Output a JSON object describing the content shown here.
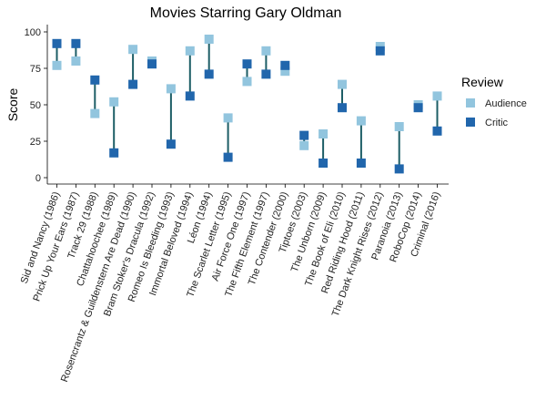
{
  "chart_data": {
    "type": "scatter",
    "title": "Movies Starring Gary Oldman",
    "xlabel": "",
    "ylabel": "Score",
    "ylim": [
      0,
      100
    ],
    "yticks": [
      0,
      25,
      50,
      75,
      100
    ],
    "grid": false,
    "legend": {
      "title": "Review",
      "placement": "right",
      "entries": [
        "Audience",
        "Critic"
      ]
    },
    "categories": [
      "Sid and Nancy (1986)",
      "Prick Up Your Ears (1987)",
      "Track 29 (1988)",
      "Chattahoochee (1989)",
      "Rosencrantz & Guildenstern Are Dead (1990)",
      "Bram Stoker's Dracula (1992)",
      "Romeo Is Bleeding (1993)",
      "Immortal Beloved (1994)",
      "Léon (1994)",
      "The Scarlet Letter (1995)",
      "Air Force One (1997)",
      "The Fifth Element (1997)",
      "The Contender (2000)",
      "Tiptoes (2003)",
      "The Unborn (2009)",
      "The Book of Eli (2010)",
      "Red Riding Hood (2011)",
      "The Dark Knight Rises (2012)",
      "Paranoia (2013)",
      "RoboCop (2014)",
      "Criminal (2016)"
    ],
    "series": [
      {
        "name": "Audience",
        "values": [
          77,
          80,
          44,
          52,
          88,
          80,
          61,
          87,
          95,
          41,
          66,
          87,
          73,
          22,
          30,
          64,
          39,
          90,
          35,
          50,
          56
        ]
      },
      {
        "name": "Critic",
        "values": [
          92,
          92,
          67,
          17,
          64,
          78,
          23,
          56,
          71,
          14,
          78,
          71,
          77,
          29,
          10,
          48,
          10,
          87,
          6,
          48,
          32
        ]
      }
    ],
    "colors": {
      "Audience": "#92c5de",
      "Critic": "#2166ac",
      "segment": "#1d5e66"
    }
  }
}
